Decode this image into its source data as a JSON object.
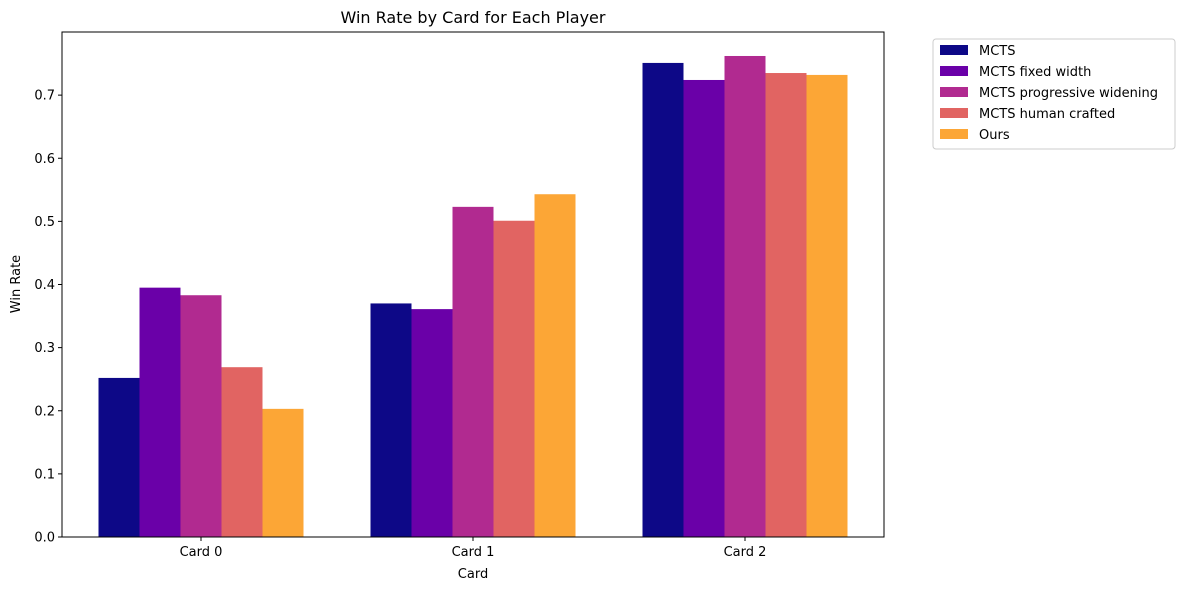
{
  "chart_data": {
    "type": "bar",
    "title": "Win Rate by Card for Each Player",
    "xlabel": "Card",
    "ylabel": "Win Rate",
    "categories": [
      "Card 0",
      "Card 1",
      "Card 2"
    ],
    "ylim": [
      0,
      0.8
    ],
    "yticks": [
      0.0,
      0.1,
      0.2,
      0.3,
      0.4,
      0.5,
      0.6,
      0.7
    ],
    "ytick_labels": [
      "0.0",
      "0.1",
      "0.2",
      "0.3",
      "0.4",
      "0.5",
      "0.6",
      "0.7"
    ],
    "grid": false,
    "legend_position": "outside-top-right",
    "series": [
      {
        "name": "MCTS",
        "color": "#0d0887",
        "values": [
          0.252,
          0.37,
          0.751
        ]
      },
      {
        "name": "MCTS fixed width",
        "color": "#6a00a8",
        "values": [
          0.395,
          0.361,
          0.724
        ]
      },
      {
        "name": "MCTS progressive widening",
        "color": "#b12a90",
        "values": [
          0.383,
          0.523,
          0.762
        ]
      },
      {
        "name": "MCTS human crafted",
        "color": "#e16462",
        "values": [
          0.269,
          0.501,
          0.735
        ]
      },
      {
        "name": "Ours",
        "color": "#fca636",
        "values": [
          0.203,
          0.543,
          0.732
        ]
      }
    ]
  }
}
